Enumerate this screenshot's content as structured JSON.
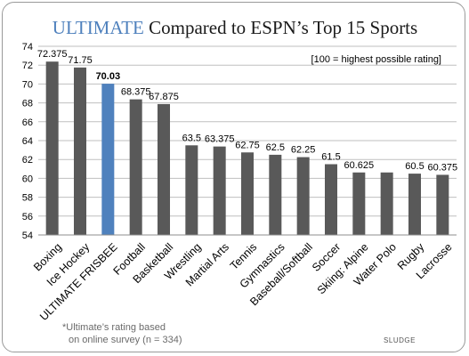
{
  "chart_data": {
    "type": "bar",
    "title": {
      "highlight": "ULTIMATE",
      "rest": " Compared to ESPN’s Top 15 Sports"
    },
    "categories": [
      "Boxing",
      "Ice Hockey",
      "ULTIMATE FRISBEE",
      "Football",
      "Basketball",
      "Wrestling",
      "Martial Arts",
      "Tennis",
      "Gymnastics",
      "Baseball/Softball",
      "Soccer",
      "Skiing: Alpine",
      "Water Polo",
      "Rugby",
      "Lacrosse"
    ],
    "values": [
      72.375,
      71.75,
      70.03,
      68.375,
      67.875,
      63.5,
      63.375,
      62.75,
      62.5,
      62.25,
      61.5,
      60.625,
      60.625,
      60.5,
      60.375
    ],
    "value_labels": [
      "72.375",
      "71.75",
      "70.03",
      "68.375",
      "67.875",
      "63.5",
      "63.375",
      "62.75",
      "62.5",
      "62.25",
      "61.5",
      "60.625",
      "",
      "60.5",
      "60.375"
    ],
    "highlight_index": 2,
    "ylim": [
      54,
      74
    ],
    "yticks": [
      54,
      56,
      58,
      60,
      62,
      64,
      66,
      68,
      70,
      72,
      74
    ],
    "grid": true,
    "xlabel": "",
    "ylabel": "",
    "annotation": "[100 = highest possible rating]",
    "colors": {
      "bar": "#595959",
      "highlight_bar": "#4f81bd",
      "highlight_text": "#4f81bd",
      "title_text": "#1a1a1a",
      "grid": "#bfbfbf"
    }
  },
  "footnote": {
    "line1": "*Ultimate’s rating based",
    "line2": "on online survey (n = 334)"
  },
  "brand": "SLUDGE"
}
